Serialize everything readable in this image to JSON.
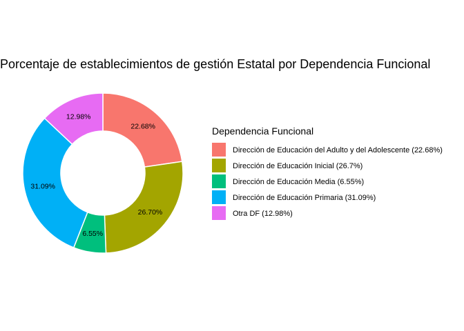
{
  "chart_data": {
    "type": "pie",
    "variant": "donut",
    "title": "Porcentaje de establecimientos de gestión Estatal por Dependencia Funcional",
    "legend_title": "Dependencia Funcional",
    "legend_position": "right",
    "slices": [
      {
        "category": "Dirección de Educación del Adulto y del Adolescente",
        "value": 22.68,
        "label": "22.68%",
        "legend_label": "Dirección de Educación del Adulto y del Adolescente (22.68%)",
        "color": "#F8766D"
      },
      {
        "category": "Dirección de Educación Inicial",
        "value": 26.7,
        "label": "26.70%",
        "legend_label": "Dirección de Educación Inicial (26.7%)",
        "color": "#A3A500"
      },
      {
        "category": "Dirección de Educación Media",
        "value": 6.55,
        "label": "6.55%",
        "legend_label": "Dirección de Educación Media (6.55%)",
        "color": "#00BF7D"
      },
      {
        "category": "Dirección de Educación Primaria",
        "value": 31.09,
        "label": "31.09%",
        "legend_label": "Dirección de Educación Primaria (31.09%)",
        "color": "#00B0F6"
      },
      {
        "category": "Otra DF",
        "value": 12.98,
        "label": "12.98%",
        "legend_label": "Otra DF (12.98%)",
        "color": "#E76BF3"
      }
    ]
  }
}
